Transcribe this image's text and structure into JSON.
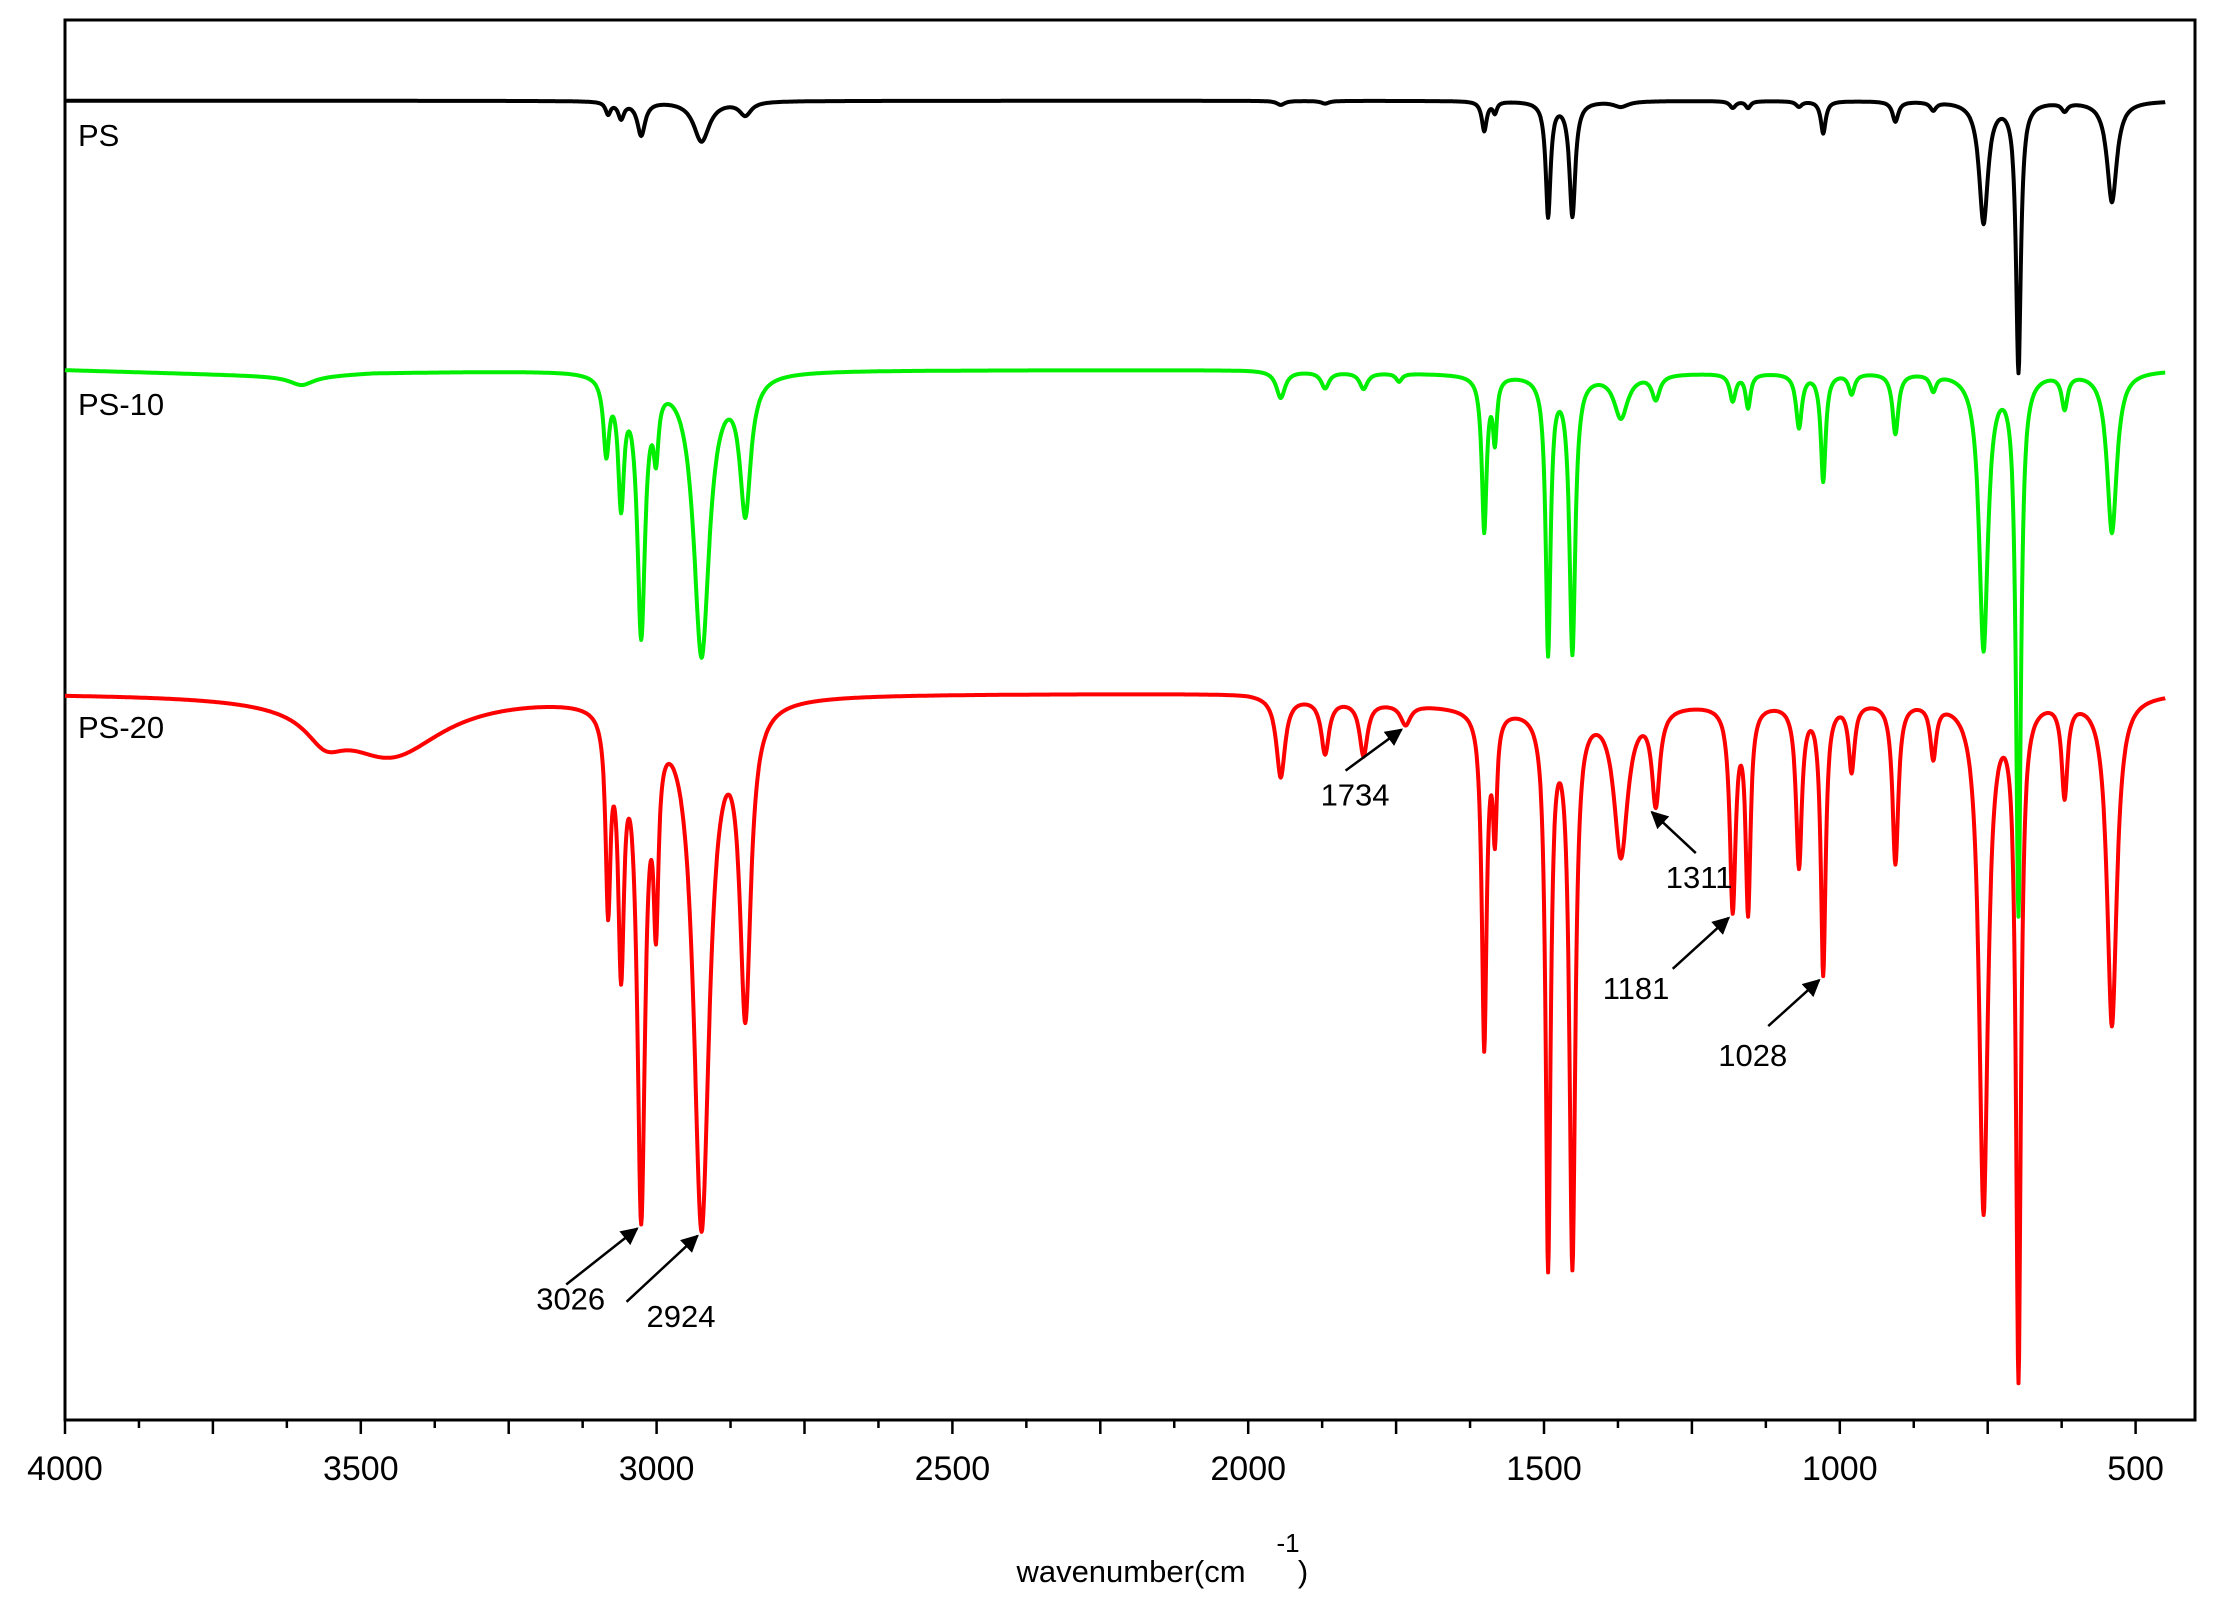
{
  "chart_data": {
    "type": "line",
    "title": "",
    "xlabel": "wavenumber(cm",
    "xlabel_superscript": "-1",
    "xlabel_suffix": ")",
    "ylabel": "",
    "xlim": [
      4000,
      450
    ],
    "x_reversed": true,
    "xticks": [
      4000,
      3500,
      3000,
      2500,
      2000,
      1500,
      1000,
      500
    ],
    "xtick_labels": [
      "4000",
      "3500",
      "3000",
      "2500",
      "2000",
      "1500",
      "1000",
      "500"
    ],
    "grid": false,
    "legend": "none (series labelled directly on plot)",
    "y_units": "relative transmittance (stacked, offset)",
    "series": [
      {
        "name": "PS",
        "color": "#000000",
        "baseline": 5.0,
        "base_slope": [
          [
            4000,
            5.0
          ],
          [
            3300,
            5.0
          ],
          [
            3150,
            5.0
          ],
          [
            2000,
            5.0
          ],
          [
            1600,
            5.0
          ],
          [
            450,
            5.0
          ]
        ],
        "peaks": [
          [
            3082,
            0.09,
            5
          ],
          [
            3060,
            0.12,
            6
          ],
          [
            3026,
            0.25,
            8
          ],
          [
            2924,
            0.3,
            16
          ],
          [
            2850,
            0.1,
            12
          ],
          [
            1945,
            0.03,
            8
          ],
          [
            1870,
            0.02,
            8
          ],
          [
            1601,
            0.22,
            5
          ],
          [
            1583,
            0.08,
            4
          ],
          [
            1493,
            0.85,
            5
          ],
          [
            1452,
            0.85,
            6
          ],
          [
            1370,
            0.04,
            15
          ],
          [
            1181,
            0.05,
            6
          ],
          [
            1155,
            0.05,
            5
          ],
          [
            1069,
            0.04,
            6
          ],
          [
            1028,
            0.24,
            5
          ],
          [
            906,
            0.15,
            6
          ],
          [
            842,
            0.06,
            6
          ],
          [
            757,
            0.9,
            9
          ],
          [
            698,
            2.0,
            5
          ],
          [
            620,
            0.06,
            6
          ],
          [
            540,
            0.75,
            10
          ]
        ]
      },
      {
        "name": "PS-10",
        "color": "#00ee00",
        "baseline": 3.0,
        "base_slope": [
          [
            4000,
            3.0
          ],
          [
            3600,
            2.95
          ],
          [
            3480,
            2.98
          ],
          [
            3150,
            3.0
          ],
          [
            2000,
            3.0
          ],
          [
            1620,
            2.97
          ],
          [
            450,
            3.0
          ]
        ],
        "peaks": [
          [
            3600,
            0.06,
            25
          ],
          [
            3085,
            0.55,
            6
          ],
          [
            3060,
            0.9,
            6
          ],
          [
            3026,
            1.9,
            8
          ],
          [
            3001,
            0.45,
            5
          ],
          [
            2924,
            2.1,
            16
          ],
          [
            2850,
            1.0,
            11
          ],
          [
            1945,
            0.2,
            9
          ],
          [
            1870,
            0.12,
            8
          ],
          [
            1805,
            0.12,
            8
          ],
          [
            1745,
            0.06,
            6
          ],
          [
            1601,
            1.15,
            5
          ],
          [
            1583,
            0.45,
            4
          ],
          [
            1493,
            2.05,
            5
          ],
          [
            1452,
            2.05,
            6
          ],
          [
            1370,
            0.32,
            14
          ],
          [
            1311,
            0.18,
            8
          ],
          [
            1181,
            0.2,
            6
          ],
          [
            1155,
            0.25,
            5
          ],
          [
            1069,
            0.4,
            6
          ],
          [
            1028,
            0.8,
            5
          ],
          [
            980,
            0.15,
            6
          ],
          [
            906,
            0.45,
            6
          ],
          [
            842,
            0.12,
            6
          ],
          [
            757,
            2.05,
            9
          ],
          [
            698,
            4.0,
            5
          ],
          [
            620,
            0.25,
            6
          ],
          [
            540,
            1.2,
            10
          ]
        ]
      },
      {
        "name": "PS-20",
        "color": "#ff0000",
        "baseline": 0.6,
        "base_slope": [
          [
            4000,
            0.6
          ],
          [
            3700,
            0.6
          ],
          [
            3150,
            0.6
          ],
          [
            2000,
            0.6
          ],
          [
            1620,
            0.5
          ],
          [
            450,
            0.6
          ]
        ],
        "peaks": [
          [
            3560,
            0.2,
            40
          ],
          [
            3450,
            0.45,
            110
          ],
          [
            3082,
            1.4,
            5
          ],
          [
            3060,
            1.8,
            6
          ],
          [
            3026,
            3.7,
            8
          ],
          [
            3001,
            1.3,
            5
          ],
          [
            2924,
            3.9,
            16
          ],
          [
            2850,
            2.25,
            11
          ],
          [
            1945,
            0.6,
            9
          ],
          [
            1870,
            0.4,
            8
          ],
          [
            1805,
            0.4,
            8
          ],
          [
            1734,
            0.15,
            10
          ],
          [
            1601,
            2.5,
            5
          ],
          [
            1583,
            0.85,
            4
          ],
          [
            1493,
            4.1,
            5
          ],
          [
            1452,
            4.1,
            6
          ],
          [
            1370,
            1.1,
            14
          ],
          [
            1311,
            0.7,
            8
          ],
          [
            1181,
            1.5,
            6
          ],
          [
            1155,
            1.5,
            5
          ],
          [
            1069,
            1.2,
            6
          ],
          [
            1028,
            2.0,
            5
          ],
          [
            980,
            0.5,
            6
          ],
          [
            906,
            1.2,
            6
          ],
          [
            842,
            0.4,
            6
          ],
          [
            757,
            3.8,
            9
          ],
          [
            698,
            5.0,
            5
          ],
          [
            620,
            0.7,
            6
          ],
          [
            540,
            2.45,
            10
          ]
        ]
      }
    ],
    "ylim": [
      -4.8,
      5.6
    ],
    "annotations": [
      {
        "label": "3026",
        "x": 3026,
        "series": "PS-20"
      },
      {
        "label": "2924",
        "x": 2924,
        "series": "PS-20"
      },
      {
        "label": "1734",
        "x": 1734,
        "series": "PS-20"
      },
      {
        "label": "1311",
        "x": 1311,
        "series": "PS-20"
      },
      {
        "label": "1181",
        "x": 1181,
        "series": "PS-20"
      },
      {
        "label": "1028",
        "x": 1028,
        "series": "PS-20"
      }
    ]
  }
}
